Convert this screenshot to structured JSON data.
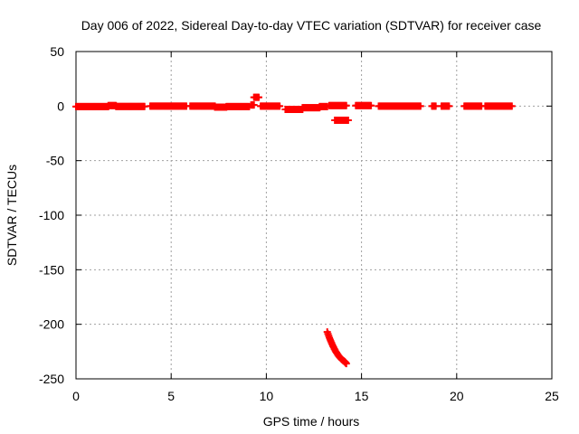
{
  "chart_data": {
    "type": "scatter",
    "title": "Day 006 of 2022, Sidereal Day-to-day VTEC variation (SDTVAR) for receiver case",
    "xlabel": "GPS time / hours",
    "ylabel": "SDTVAR / TECUs",
    "xlim": [
      0,
      25
    ],
    "ylim": [
      -250,
      50
    ],
    "xticks": [
      0,
      5,
      10,
      15,
      20,
      25
    ],
    "yticks": [
      50,
      0,
      -50,
      -100,
      -150,
      -200,
      -250
    ],
    "grid": true,
    "marker": "plus",
    "series_color": "#ff0000",
    "series": [
      {
        "name": "SDTVAR",
        "segments": [
          {
            "x_start": 0.0,
            "x_end": 1.7,
            "y": -0.5
          },
          {
            "x_start": 1.7,
            "x_end": 2.1,
            "y": 0.5
          },
          {
            "x_start": 2.1,
            "x_end": 3.6,
            "y": -0.3
          },
          {
            "x_start": 3.9,
            "x_end": 5.8,
            "y": 0.0
          },
          {
            "x_start": 6.0,
            "x_end": 7.3,
            "y": 0.0
          },
          {
            "x_start": 7.3,
            "x_end": 7.9,
            "y": -1.0
          },
          {
            "x_start": 7.9,
            "x_end": 9.1,
            "y": -0.5
          },
          {
            "x_start": 9.2,
            "x_end": 9.35,
            "y": 1.0
          },
          {
            "x_start": 9.35,
            "x_end": 9.6,
            "y": 8.0
          },
          {
            "x_start": 9.7,
            "x_end": 10.7,
            "y": 0.0
          },
          {
            "x_start": 11.0,
            "x_end": 11.9,
            "y": -3.0
          },
          {
            "x_start": 11.9,
            "x_end": 12.8,
            "y": -1.5
          },
          {
            "x_start": 12.8,
            "x_end": 13.2,
            "y": -0.5
          },
          {
            "x_start": 13.3,
            "x_end": 14.2,
            "y": 0.5
          },
          {
            "x_start": 13.6,
            "x_end": 14.3,
            "y": -13.0
          },
          {
            "x_start": 14.7,
            "x_end": 15.5,
            "y": 0.5
          },
          {
            "x_start": 15.9,
            "x_end": 18.1,
            "y": 0.0
          },
          {
            "x_start": 18.7,
            "x_end": 18.9,
            "y": 0.0
          },
          {
            "x_start": 19.2,
            "x_end": 19.6,
            "y": 0.0
          },
          {
            "x_start": 20.4,
            "x_end": 21.3,
            "y": 0.0
          },
          {
            "x_start": 21.5,
            "x_end": 22.9,
            "y": 0.0
          }
        ],
        "curve": [
          {
            "x": 13.2,
            "y": -207
          },
          {
            "x": 13.35,
            "y": -214
          },
          {
            "x": 13.5,
            "y": -220
          },
          {
            "x": 13.65,
            "y": -225
          },
          {
            "x": 13.8,
            "y": -229
          },
          {
            "x": 13.95,
            "y": -232
          },
          {
            "x": 14.1,
            "y": -234
          },
          {
            "x": 14.2,
            "y": -236
          }
        ]
      }
    ]
  }
}
